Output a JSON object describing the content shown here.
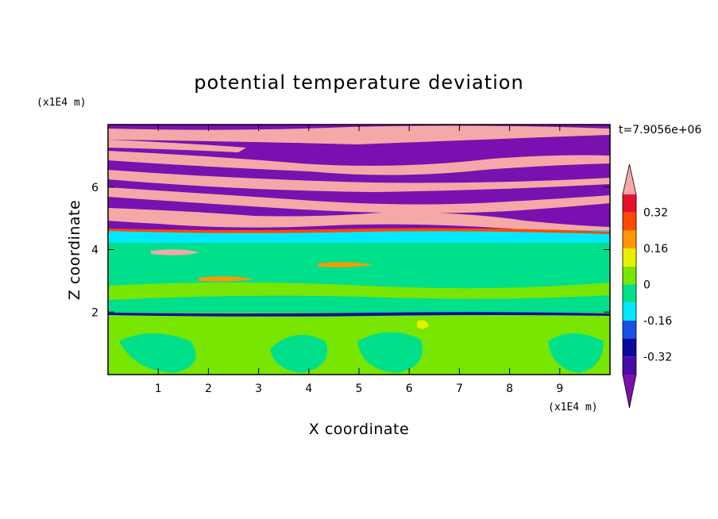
{
  "chart_data": {
    "type": "heatmap",
    "title": "potential temperature deviation",
    "xlabel": "X coordinate",
    "ylabel": "Z coordinate",
    "x_unit": "(x1E4 m)",
    "z_unit": "(x1E4 m)",
    "time_label": "t=7.9056e+06",
    "xlim": [
      0,
      10
    ],
    "zlim": [
      0,
      8
    ],
    "x_ticks": [
      "1",
      "2",
      "3",
      "4",
      "5",
      "6",
      "7",
      "8",
      "9"
    ],
    "z_ticks": [
      "2",
      "4",
      "6"
    ],
    "colorbar": {
      "levels": [
        -0.4,
        -0.32,
        -0.24,
        -0.16,
        -0.08,
        0,
        0.08,
        0.16,
        0.24,
        0.32,
        0.4
      ],
      "labels": [
        "0.32",
        "0.16",
        "0",
        "-0.16",
        "-0.32"
      ],
      "colors": [
        "#7a10b0",
        "#4a0aa8",
        "#0a0a9e",
        "#1a50e6",
        "#00e8ff",
        "#00e08a",
        "#78e600",
        "#e8f000",
        "#ff9800",
        "#ff4a00",
        "#e8102a",
        "#f4a8a8"
      ]
    },
    "layers": [
      {
        "z_range": [
          0,
          2
        ],
        "dominant": "0 to 0.08",
        "note": "light green with cells"
      },
      {
        "z_range": [
          2,
          4.4
        ],
        "dominant": "-0.08 to 0",
        "note": "green with thin bands"
      },
      {
        "z_range": [
          4.4,
          4.7
        ],
        "dominant": "-0.24 to -0.16",
        "note": "cyan band"
      },
      {
        "z_range": [
          4.7,
          8
        ],
        "dominant": "alternating below -0.4 and above 0.4",
        "note": "purple and pink streaks"
      }
    ]
  }
}
